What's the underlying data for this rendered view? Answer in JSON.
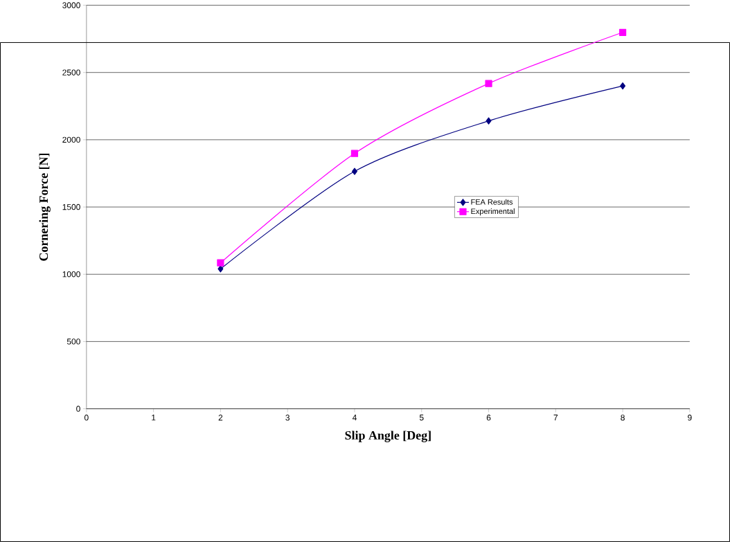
{
  "chart_data": {
    "type": "line",
    "xlabel": "Slip Angle [Deg]",
    "ylabel": "Cornering Force [N]",
    "x": [
      2,
      4,
      6,
      8
    ],
    "series": [
      {
        "name": "FEA Results",
        "color": "#000080",
        "marker": "diamond",
        "values": [
          1040,
          1765,
          2140,
          2400
        ]
      },
      {
        "name": "Experimental",
        "color": "#ff00ff",
        "marker": "square",
        "values": [
          1085,
          1898,
          2418,
          2798
        ]
      }
    ],
    "xlim": [
      0,
      9
    ],
    "xticks": [
      0,
      1,
      2,
      3,
      4,
      5,
      6,
      7,
      8,
      9
    ],
    "ylim": [
      0,
      3000
    ],
    "yticks": [
      0,
      500,
      1000,
      1500,
      2000,
      2500,
      3000
    ],
    "grid": "y",
    "legend": "right",
    "line_style": "solid"
  }
}
